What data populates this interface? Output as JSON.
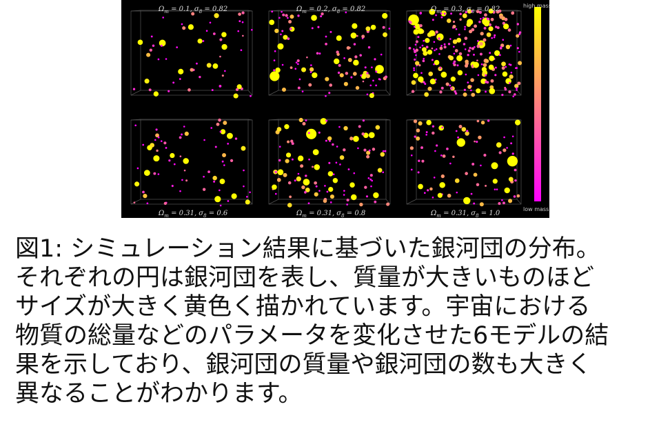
{
  "figure": {
    "panels": [
      {
        "label": [
          "Ω",
          "m",
          " = 0.1, σ",
          "8",
          " = 0.82"
        ]
      },
      {
        "label": [
          "Ω",
          "m",
          " = 0.2, σ",
          "8",
          " = 0.82"
        ]
      },
      {
        "label": [
          "Ω",
          "m",
          " = 0.3, σ",
          "8",
          " = 0.82"
        ]
      },
      {
        "label": [
          "Ω",
          "m",
          " = 0.31, σ",
          "8",
          " = 0.6"
        ]
      },
      {
        "label": [
          "Ω",
          "m",
          " = 0.31, σ",
          "8",
          " = 0.8"
        ]
      },
      {
        "label": [
          "Ω",
          "m",
          " = 0.31, σ",
          "8",
          " = 1.0"
        ]
      }
    ],
    "colorbar": {
      "top_label": "high mass",
      "bottom_label": "low mass"
    }
  },
  "caption": {
    "lines": [
      "図1: シミュレーション結果に基づいた銀河団の分布。",
      "それぞれの円は銀河団を表し、質量が大きいものほど",
      "サイズが大きく黄色く描かれています。宇宙における",
      "物質の総量などのパラメータを変化させた6モデルの結",
      "果を示しており、銀河団の質量や銀河団の数も大きく",
      "異なることがわかります。"
    ]
  }
}
